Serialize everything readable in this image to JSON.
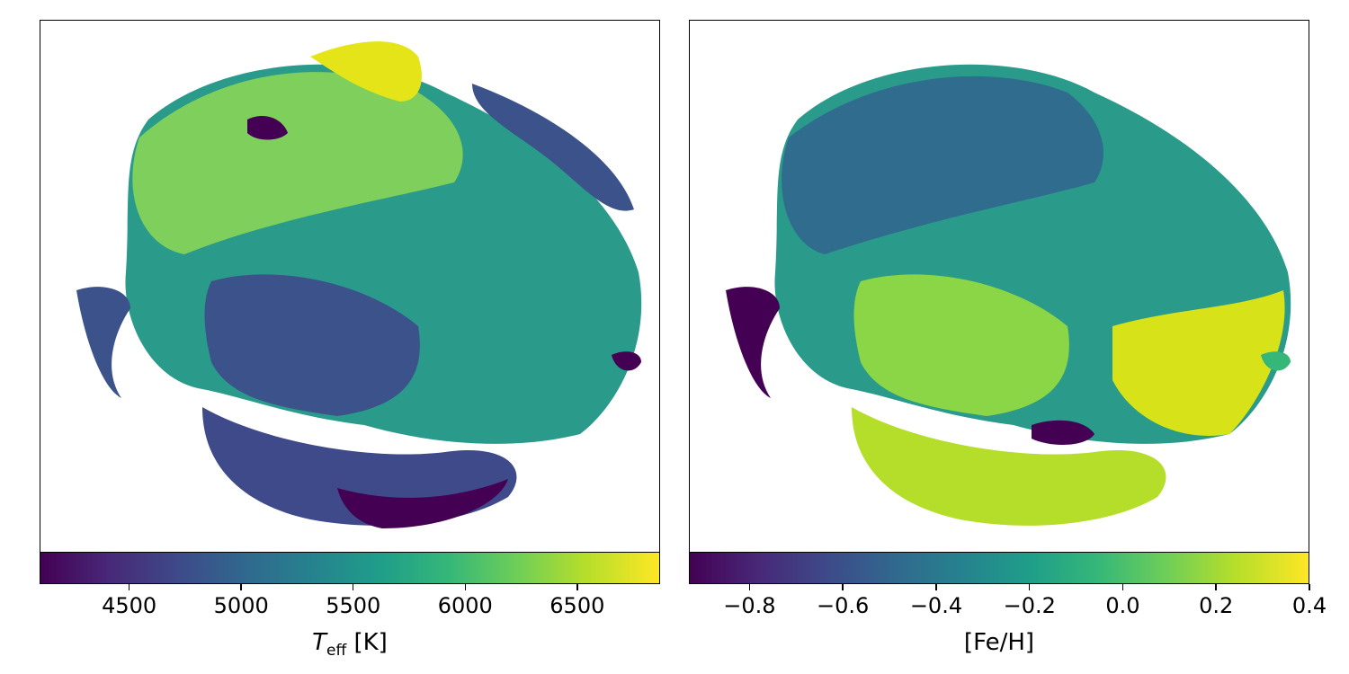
{
  "chart_data": [
    {
      "type": "scatter",
      "title": "",
      "colormap": "viridis",
      "colorbar": {
        "label_symbol": "T",
        "label_subscript": "eff",
        "label_unit": "[K]",
        "range": [
          4100,
          6870
        ],
        "ticks": [
          "4500",
          "5000",
          "5500",
          "6000",
          "6500"
        ],
        "tick_values": [
          4500,
          5000,
          5500,
          6000,
          6500
        ]
      },
      "axes": {
        "xticks": [],
        "yticks": []
      }
    },
    {
      "type": "scatter",
      "title": "",
      "colormap": "viridis",
      "colorbar": {
        "label": "[Fe/H]",
        "range": [
          -0.93,
          0.4
        ],
        "ticks": [
          "−0.8",
          "−0.6",
          "−0.4",
          "−0.2",
          "0.0",
          "0.2",
          "0.4"
        ],
        "tick_values": [
          -0.8,
          -0.6,
          -0.4,
          -0.2,
          0.0,
          0.2,
          0.4
        ]
      },
      "axes": {
        "xticks": [],
        "yticks": []
      }
    }
  ]
}
